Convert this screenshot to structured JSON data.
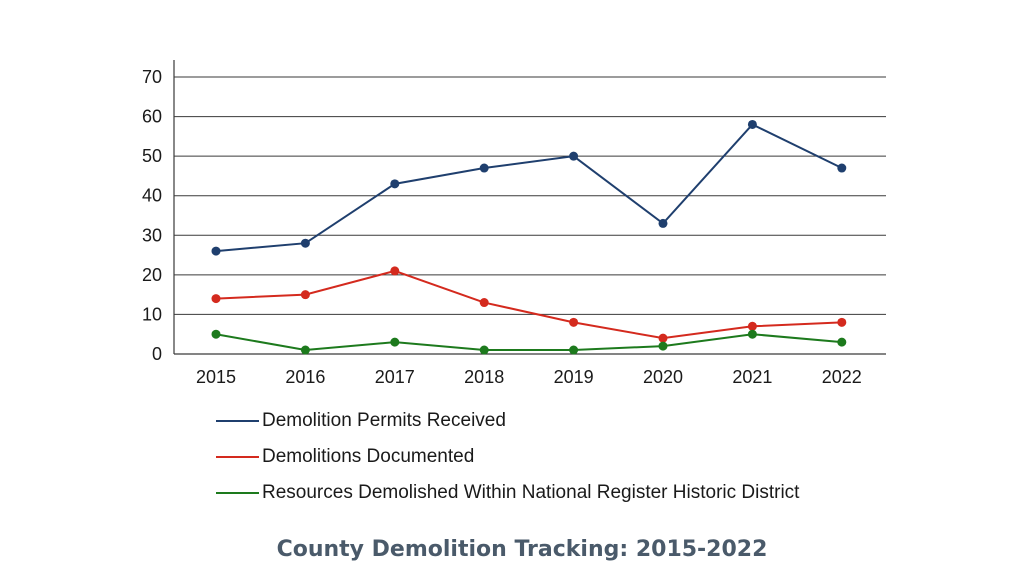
{
  "chart_data": {
    "type": "line",
    "title": "County Demolition Tracking: 2015-2022",
    "xlabel": "",
    "ylabel": "",
    "categories": [
      "2015",
      "2016",
      "2017",
      "2018",
      "2019",
      "2020",
      "2021",
      "2022"
    ],
    "ylim": [
      0,
      70
    ],
    "yticks": [
      0,
      10,
      20,
      30,
      40,
      50,
      60,
      70
    ],
    "grid": true,
    "legend_position": "bottom",
    "series": [
      {
        "name": "Demolition Permits Received",
        "color": "#1f3f6e",
        "values": [
          26,
          28,
          43,
          47,
          50,
          33,
          58,
          47
        ]
      },
      {
        "name": "Demolitions Documented",
        "color": "#d42a1e",
        "values": [
          14,
          15,
          21,
          13,
          8,
          4,
          7,
          8
        ]
      },
      {
        "name": "Resources Demolished Within National Register Historic District",
        "color": "#1d7a1d",
        "values": [
          5,
          1,
          3,
          1,
          1,
          2,
          5,
          3
        ]
      }
    ]
  }
}
